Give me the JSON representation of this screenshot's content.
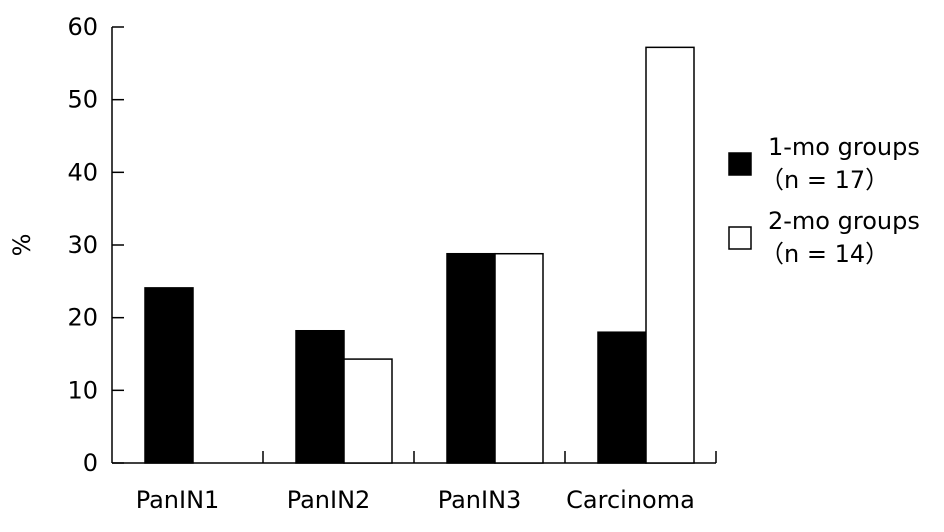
{
  "chart_data": {
    "type": "bar",
    "title": "",
    "xlabel": "",
    "ylabel": "%",
    "ylim": [
      0,
      60
    ],
    "yticks": [
      "0",
      "10",
      "20",
      "30",
      "40",
      "50",
      "60"
    ],
    "categories": [
      "PanIN1",
      "PanIN2",
      "PanIN3",
      "Carcinoma"
    ],
    "series": [
      {
        "name": "1-mo groups",
        "legend_line2": "（n = 17）",
        "values": [
          24.1,
          18.2,
          28.8,
          18.0
        ],
        "color": "#000000"
      },
      {
        "name": "2-mo groups",
        "legend_line2": "（n = 14）",
        "values": [
          0,
          14.3,
          28.8,
          57.2
        ],
        "color": "#ffffff"
      }
    ],
    "grid": false,
    "legend_position": "right"
  }
}
